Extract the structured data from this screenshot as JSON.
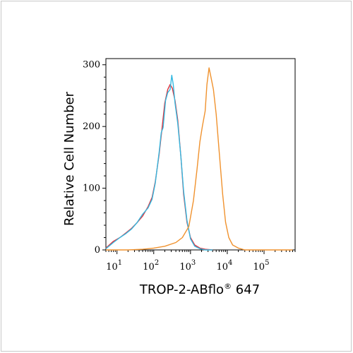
{
  "chart_data": {
    "type": "line",
    "title": "",
    "xlabel": "TROP-2-ABflo",
    "xlabel_sup": "®",
    "xlabel_suffix": " 647",
    "ylabel": "Relative Cell Number",
    "x_scale": "log",
    "xlim": [
      5,
      700000
    ],
    "ylim": [
      0,
      310
    ],
    "y_ticks": [
      0,
      100,
      200,
      300
    ],
    "y_tick_labels": [
      "0",
      "100",
      "200",
      "300"
    ],
    "x_ticks": [
      {
        "base": "10",
        "exp": "1",
        "value": 10
      },
      {
        "base": "10",
        "exp": "2",
        "value": 100
      },
      {
        "base": "10",
        "exp": "3",
        "value": 1000
      },
      {
        "base": "10",
        "exp": "4",
        "value": 10000
      },
      {
        "base": "10",
        "exp": "5",
        "value": 100000
      }
    ],
    "grid": false,
    "legend": "none",
    "series": [
      {
        "color": "#e0303a",
        "points": [
          [
            5,
            3
          ],
          [
            8,
            14
          ],
          [
            12,
            20
          ],
          [
            17,
            27
          ],
          [
            25,
            35
          ],
          [
            35,
            44
          ],
          [
            50,
            55
          ],
          [
            70,
            70
          ],
          [
            90,
            85
          ],
          [
            110,
            110
          ],
          [
            140,
            155
          ],
          [
            170,
            200
          ],
          [
            200,
            238
          ],
          [
            240,
            260
          ],
          [
            280,
            268
          ],
          [
            320,
            262
          ],
          [
            380,
            242
          ],
          [
            450,
            210
          ],
          [
            550,
            150
          ],
          [
            650,
            90
          ],
          [
            800,
            45
          ],
          [
            1000,
            20
          ],
          [
            1300,
            8
          ],
          [
            1800,
            3
          ],
          [
            2500,
            1
          ],
          [
            4000,
            0
          ]
        ]
      },
      {
        "color": "#33b8e0",
        "points": [
          [
            5,
            2
          ],
          [
            8,
            12
          ],
          [
            12,
            20
          ],
          [
            17,
            26
          ],
          [
            25,
            34
          ],
          [
            35,
            44
          ],
          [
            50,
            58
          ],
          [
            70,
            68
          ],
          [
            90,
            82
          ],
          [
            110,
            108
          ],
          [
            140,
            158
          ],
          [
            160,
            190
          ],
          [
            180,
            198
          ],
          [
            210,
            242
          ],
          [
            240,
            255
          ],
          [
            280,
            260
          ],
          [
            310,
            283
          ],
          [
            340,
            268
          ],
          [
            380,
            238
          ],
          [
            450,
            205
          ],
          [
            550,
            150
          ],
          [
            650,
            95
          ],
          [
            800,
            48
          ],
          [
            1000,
            18
          ],
          [
            1300,
            6
          ],
          [
            1800,
            2
          ],
          [
            2500,
            0
          ],
          [
            4000,
            0
          ]
        ]
      },
      {
        "color": "#f0922e",
        "points": [
          [
            5,
            0
          ],
          [
            20,
            0
          ],
          [
            50,
            1
          ],
          [
            100,
            3
          ],
          [
            200,
            6
          ],
          [
            400,
            12
          ],
          [
            600,
            20
          ],
          [
            900,
            38
          ],
          [
            1200,
            80
          ],
          [
            1500,
            130
          ],
          [
            1800,
            175
          ],
          [
            2100,
            200
          ],
          [
            2500,
            225
          ],
          [
            2800,
            268
          ],
          [
            3200,
            295
          ],
          [
            3600,
            280
          ],
          [
            4200,
            260
          ],
          [
            5000,
            220
          ],
          [
            6000,
            160
          ],
          [
            7500,
            90
          ],
          [
            9000,
            45
          ],
          [
            11000,
            20
          ],
          [
            14000,
            8
          ],
          [
            20000,
            3
          ],
          [
            30000,
            0
          ],
          [
            600000,
            0
          ]
        ]
      }
    ]
  }
}
